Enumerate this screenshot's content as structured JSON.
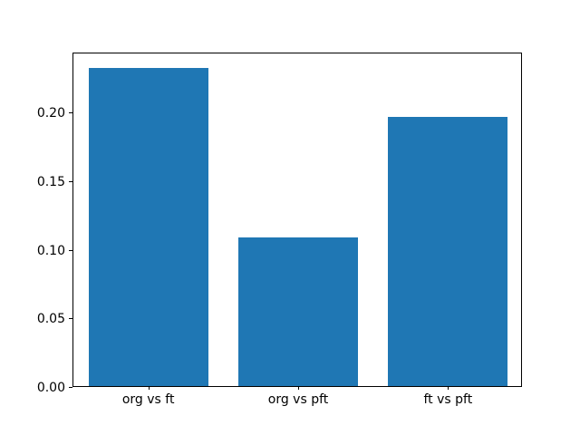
{
  "chart_data": {
    "type": "bar",
    "categories": [
      "org vs ft",
      "org vs pft",
      "ft vs pft"
    ],
    "values": [
      0.232,
      0.108,
      0.196
    ],
    "title": "",
    "xlabel": "",
    "ylabel": "",
    "ylim": [
      0,
      0.2436
    ],
    "y_tick_values": [
      0.0,
      0.05,
      0.1,
      0.15,
      0.2
    ],
    "y_tick_labels": [
      "0.00",
      "0.05",
      "0.10",
      "0.15",
      "0.20"
    ],
    "bar_color": "#1f77b4",
    "bar_width_fraction": 0.8,
    "grid": false,
    "legend": null,
    "background_color": "#ffffff",
    "spine_color": "#000000"
  }
}
